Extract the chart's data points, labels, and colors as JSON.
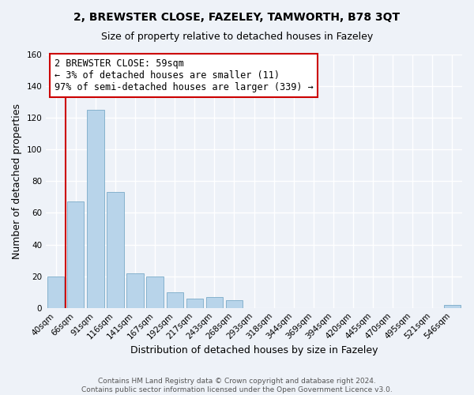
{
  "title": "2, BREWSTER CLOSE, FAZELEY, TAMWORTH, B78 3QT",
  "subtitle": "Size of property relative to detached houses in Fazeley",
  "xlabel": "Distribution of detached houses by size in Fazeley",
  "ylabel": "Number of detached properties",
  "bar_labels": [
    "40sqm",
    "66sqm",
    "91sqm",
    "116sqm",
    "141sqm",
    "167sqm",
    "192sqm",
    "217sqm",
    "243sqm",
    "268sqm",
    "293sqm",
    "318sqm",
    "344sqm",
    "369sqm",
    "394sqm",
    "420sqm",
    "445sqm",
    "470sqm",
    "495sqm",
    "521sqm",
    "546sqm"
  ],
  "bar_values": [
    20,
    67,
    125,
    73,
    22,
    20,
    10,
    6,
    7,
    5,
    0,
    0,
    0,
    0,
    0,
    0,
    0,
    0,
    0,
    0,
    2
  ],
  "bar_color": "#b8d4ea",
  "bar_edge_color": "#7aaac8",
  "marker_line_color": "#cc0000",
  "annotation_text": "2 BREWSTER CLOSE: 59sqm\n← 3% of detached houses are smaller (11)\n97% of semi-detached houses are larger (339) →",
  "annotation_box_color": "#ffffff",
  "annotation_box_edge": "#cc0000",
  "ylim": [
    0,
    160
  ],
  "yticks": [
    0,
    20,
    40,
    60,
    80,
    100,
    120,
    140,
    160
  ],
  "footer_line1": "Contains HM Land Registry data © Crown copyright and database right 2024.",
  "footer_line2": "Contains public sector information licensed under the Open Government Licence v3.0.",
  "title_fontsize": 10,
  "subtitle_fontsize": 9,
  "axis_label_fontsize": 9,
  "tick_fontsize": 7.5,
  "annotation_fontsize": 8.5,
  "footer_fontsize": 6.5,
  "bg_color": "#eef2f8"
}
